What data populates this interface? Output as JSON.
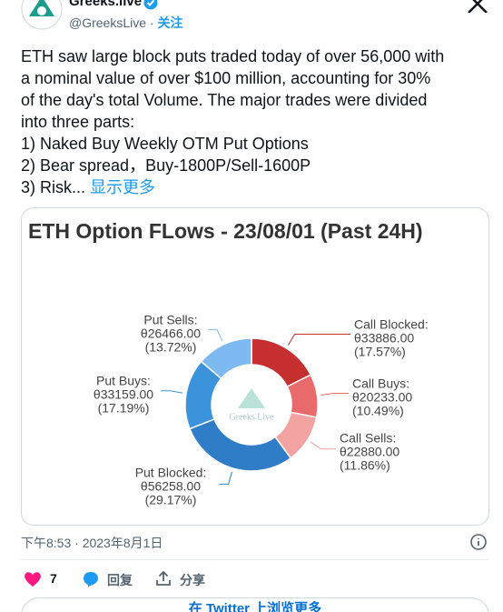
{
  "header": {
    "name": "Greeks.live",
    "handle": "@GreeksLive",
    "separator": "·",
    "follow": "关注"
  },
  "tweet": {
    "lines": [
      "ETH saw large block puts traded today of over 56,000 with",
      "a nominal value of over $100 million, accounting for 30%",
      "of the day's total Volume. The major trades were divided",
      "into three parts:",
      "1) Naked Buy Weekly OTM Put Options",
      "2) Bear spread，Buy-1800P/Sell-1600P",
      "3) Risk..."
    ],
    "show_more": "显示更多"
  },
  "chart_data": {
    "type": "donut",
    "title": "ETH Option FLows - 23/08/01  (Past 24H)",
    "watermark": "Greeks.Live",
    "categories": [
      "Call Blocked:",
      "Call Buys:",
      "Call Sells:",
      "Put Blocked:",
      "Put Buys:",
      "Put Sells:"
    ],
    "values": [
      33886,
      20233,
      22880,
      56258,
      33159,
      26466
    ],
    "value_labels": [
      "θ33886.00",
      "θ20233.00",
      "θ22880.00",
      "θ56258.00",
      "θ33159.00",
      "θ26466.00"
    ],
    "percents": [
      17.57,
      10.49,
      11.86,
      29.17,
      17.19,
      13.72
    ],
    "percent_labels": [
      "(17.57%)",
      "(10.49%)",
      "(11.86%)",
      "(29.17%)",
      "(17.19%)",
      "(13.72%)"
    ],
    "colors": [
      "#c62f2f",
      "#e86a6a",
      "#f4a3a3",
      "#2f7dc6",
      "#3b93dc",
      "#7dbaf2"
    ]
  },
  "footer": {
    "timestamp": "下午8:53 · 2023年8月1日",
    "likes": "7",
    "reply": "回复",
    "share": "分享",
    "more": "在 Twitter 上浏览更多"
  }
}
